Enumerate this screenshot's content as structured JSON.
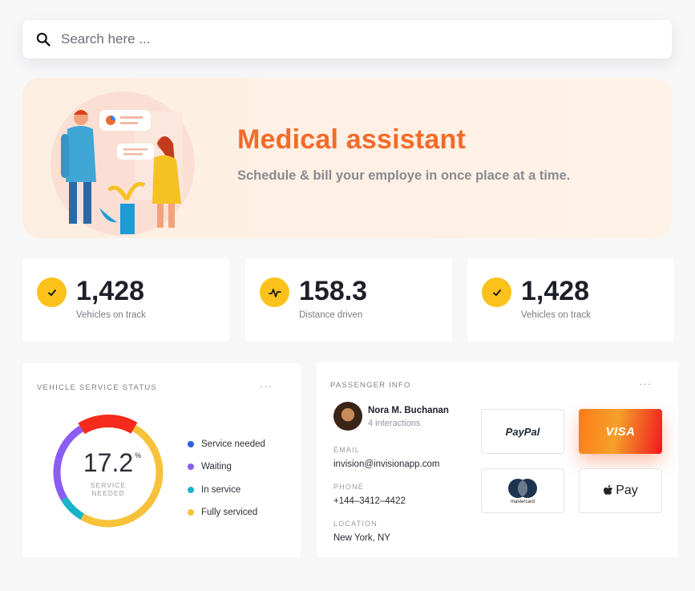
{
  "search": {
    "placeholder": "Search here ..."
  },
  "hero": {
    "title": "Medical assistant",
    "subtitle": "Schedule & bill your employe in once place at a time."
  },
  "stats": [
    {
      "value": "1,428",
      "label": "Vehicles on track",
      "icon": "check-icon"
    },
    {
      "value": "158.3",
      "label": "Distance driven",
      "icon": "activity-icon"
    },
    {
      "value": "1,428",
      "label": "Vehicles on track",
      "icon": "check-icon"
    }
  ],
  "vehicle_service": {
    "title": "VEHICLE SERVICE STATUS",
    "menu": "···",
    "center_value": "17.2",
    "center_unit": "%",
    "center_caption": "SERVICE NEEDED",
    "legend": [
      {
        "label": "Service needed",
        "color": "#2f5fe0"
      },
      {
        "label": "Waiting",
        "color": "#8b5cf6"
      },
      {
        "label": "In service",
        "color": "#17b3c9"
      },
      {
        "label": "Fully serviced",
        "color": "#f7c23a"
      }
    ],
    "segments": [
      {
        "name": "Service needed",
        "fraction": 0.172,
        "color": "#f52a1a"
      },
      {
        "name": "Fully serviced",
        "fraction": 0.5,
        "color": "#f7c23a"
      },
      {
        "name": "In service",
        "fraction": 0.08,
        "color": "#17b3c9"
      },
      {
        "name": "Waiting",
        "fraction": 0.248,
        "color": "#8b5cf6"
      }
    ]
  },
  "passenger": {
    "title": "PASSENGER INFO",
    "menu": "···",
    "name": "Nora M. Buchanan",
    "interactions": "4 interactions",
    "email_label": "EMAIL",
    "email": "invision@invisionapp.com",
    "phone_label": "PHONE",
    "phone": "+144–3412–4422",
    "location_label": "LOCATION",
    "location": "New York, NY",
    "payment_methods": {
      "paypal": "PayPal",
      "visa": "VISA",
      "mastercard": "mastercard",
      "applepay": "Pay"
    }
  },
  "colors": {
    "accent": "#f26b2a",
    "badge": "#fcc21b"
  }
}
